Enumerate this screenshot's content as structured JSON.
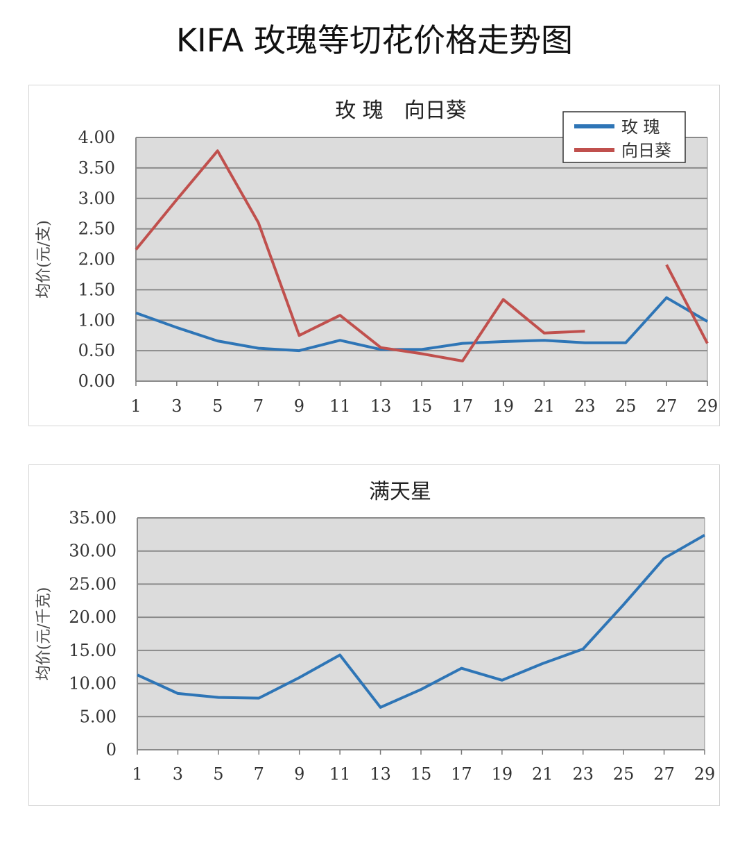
{
  "title": "KIFA 玫瑰等切花价格走势图",
  "chart_data": [
    {
      "type": "line",
      "title": "玫 瑰　向日葵",
      "xlabel": "",
      "ylabel": "均价(元/支)",
      "x": [
        1,
        3,
        5,
        7,
        9,
        11,
        13,
        15,
        17,
        19,
        21,
        23,
        25,
        27,
        29
      ],
      "x_tick_labels": [
        "1",
        "3",
        "5",
        "7",
        "9",
        "11",
        "13",
        "15",
        "17",
        "19",
        "21",
        "23",
        "25",
        "27",
        "29"
      ],
      "y_tick_labels": [
        "0.00",
        "0.50",
        "1.00",
        "1.50",
        "2.00",
        "2.50",
        "3.00",
        "3.50",
        "4.00"
      ],
      "ylim": [
        0,
        4
      ],
      "grid": true,
      "legend": "top-right",
      "series": [
        {
          "name": "玫 瑰",
          "color": "#2e75b6",
          "values": [
            1.12,
            0.88,
            0.66,
            0.54,
            0.5,
            0.67,
            0.52,
            0.52,
            0.62,
            0.65,
            0.67,
            0.63,
            0.63,
            1.37,
            0.98
          ]
        },
        {
          "name": "向日葵",
          "color": "#c0504d",
          "values": [
            2.16,
            2.98,
            3.78,
            2.6,
            0.75,
            1.08,
            0.55,
            0.45,
            0.33,
            1.34,
            0.79,
            0.82,
            null,
            1.91,
            0.62
          ]
        }
      ]
    },
    {
      "type": "line",
      "title": "满天星",
      "xlabel": "",
      "ylabel": "均价(元/千克)",
      "x": [
        1,
        3,
        5,
        7,
        9,
        11,
        13,
        15,
        17,
        19,
        21,
        23,
        25,
        27,
        29
      ],
      "x_tick_labels": [
        "1",
        "3",
        "5",
        "7",
        "9",
        "11",
        "13",
        "15",
        "17",
        "19",
        "21",
        "23",
        "25",
        "27",
        "29"
      ],
      "y_tick_labels": [
        "0",
        "5.00",
        "10.00",
        "15.00",
        "20.00",
        "25.00",
        "30.00",
        "35.00"
      ],
      "ylim": [
        0,
        35
      ],
      "grid": true,
      "legend": "none",
      "series": [
        {
          "color": "#2e75b6",
          "values": [
            11.3,
            8.5,
            7.9,
            7.8,
            10.9,
            14.3,
            6.4,
            9.1,
            12.3,
            10.5,
            13.0,
            15.2,
            21.9,
            28.9,
            32.4
          ]
        }
      ]
    }
  ]
}
